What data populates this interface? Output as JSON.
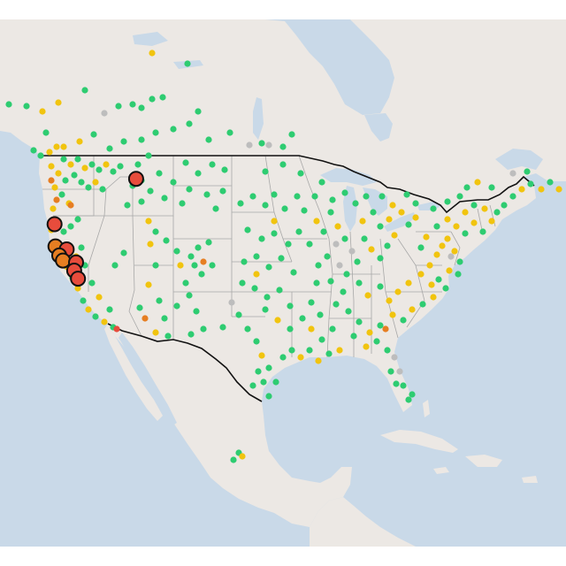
{
  "colors": {
    "water": "#c9d9e8",
    "land": "#ece8e4",
    "border": "#111111",
    "state_line": "#a8a8a8",
    "good": "#2ecc71",
    "moderate": "#f1c40f",
    "sensitive": "#e67e22",
    "unhealthy": "#e74c3c",
    "no_data": "#bdbdbd",
    "marker_outline": "#111111"
  },
  "marker_categories": [
    "good",
    "moderate",
    "sensitive",
    "unhealthy",
    "no_data"
  ],
  "large_markers": [
    {
      "lon": -114.7,
      "lat": 46.9,
      "category": "unhealthy"
    },
    {
      "lon": -123.4,
      "lat": 42.4,
      "category": "unhealthy"
    },
    {
      "lon": -123.3,
      "lat": 40.2,
      "category": "sensitive"
    },
    {
      "lon": -122.1,
      "lat": 39.9,
      "category": "unhealthy"
    },
    {
      "lon": -122.9,
      "lat": 39.3,
      "category": "sensitive"
    },
    {
      "lon": -122.5,
      "lat": 38.8,
      "category": "sensitive"
    },
    {
      "lon": -121.1,
      "lat": 38.6,
      "category": "unhealthy"
    },
    {
      "lon": -121.3,
      "lat": 37.8,
      "category": "unhealthy"
    },
    {
      "lon": -120.9,
      "lat": 37.0,
      "category": "unhealthy"
    }
  ]
}
